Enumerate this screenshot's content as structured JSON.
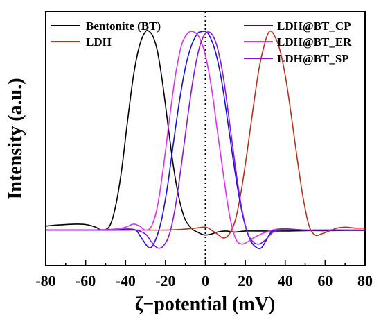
{
  "chart_data": {
    "type": "line",
    "xlabel": "ζ−potential (mV)",
    "ylabel": "Intensity (a.u.)",
    "xlim": [
      -80,
      80
    ],
    "ylim": [
      -0.18,
      1.1
    ],
    "xticks": [
      -80,
      -60,
      -40,
      -20,
      0,
      20,
      40,
      60,
      80
    ],
    "x_minor_step": 10,
    "y_ticks_shown": false,
    "reference_line": {
      "x": 0,
      "style": "dotted"
    },
    "legend": {
      "placement": "top, two columns"
    },
    "series": [
      {
        "name": "Bentonite (BT)",
        "color": "#000000",
        "x": [
          -80,
          -75,
          -70,
          -65,
          -60,
          -55,
          -52,
          -48,
          -45,
          -42,
          -39,
          -36,
          -33,
          -30,
          -28,
          -26,
          -24,
          -22,
          -20,
          -18,
          -16,
          -14,
          -12,
          -10,
          -8,
          -6,
          -4,
          -2,
          0,
          3,
          6,
          10,
          15,
          20,
          30,
          40,
          50,
          60,
          70,
          80
        ],
        "y": [
          0.02,
          0.025,
          0.028,
          0.03,
          0.028,
          0.015,
          0.0,
          0.02,
          0.12,
          0.3,
          0.55,
          0.78,
          0.93,
          1.0,
          1.0,
          0.97,
          0.9,
          0.78,
          0.63,
          0.47,
          0.32,
          0.2,
          0.11,
          0.05,
          0.02,
          0.0,
          -0.01,
          -0.02,
          -0.025,
          -0.02,
          -0.01,
          -0.005,
          -0.01,
          -0.005,
          -0.005,
          -0.005,
          -0.003,
          -0.003,
          -0.002,
          -0.002
        ]
      },
      {
        "name": "LDH",
        "color": "#b5321e",
        "x": [
          -80,
          -60,
          -40,
          -20,
          -10,
          -5,
          0,
          3,
          6,
          9,
          12,
          15,
          18,
          21,
          24,
          27,
          30,
          32,
          34,
          37,
          40,
          43,
          46,
          49,
          52,
          55,
          58,
          62,
          66,
          70,
          75,
          80
        ],
        "y": [
          0.0,
          0.0,
          0.0,
          0.0,
          0.005,
          0.01,
          0.015,
          0.0,
          -0.02,
          -0.04,
          -0.02,
          0.05,
          0.2,
          0.4,
          0.62,
          0.82,
          0.95,
          1.0,
          0.99,
          0.92,
          0.78,
          0.58,
          0.36,
          0.16,
          0.02,
          -0.025,
          -0.02,
          -0.005,
          0.01,
          0.015,
          0.01,
          0.01
        ]
      },
      {
        "name": "LDH@BT_CP",
        "color": "#1a10e0",
        "x": [
          -80,
          -60,
          -45,
          -40,
          -35,
          -32,
          -28,
          -25,
          -22,
          -19,
          -16,
          -13,
          -10,
          -7,
          -4,
          -2,
          0,
          2,
          5,
          8,
          11,
          14,
          17,
          20,
          23,
          26,
          28,
          30,
          33,
          37,
          42,
          50,
          60,
          70,
          80
        ],
        "y": [
          0.0,
          0.0,
          0.0,
          0.005,
          0.0,
          -0.04,
          -0.09,
          -0.05,
          0.05,
          0.22,
          0.44,
          0.65,
          0.82,
          0.93,
          0.99,
          1.0,
          1.0,
          0.98,
          0.9,
          0.76,
          0.56,
          0.35,
          0.16,
          0.02,
          -0.06,
          -0.09,
          -0.09,
          -0.06,
          -0.01,
          0.005,
          0.005,
          0.0,
          0.0,
          0.0,
          0.0
        ]
      },
      {
        "name": "LDH@BT_ER",
        "color": "#e22df7",
        "x": [
          -80,
          -60,
          -45,
          -40,
          -36,
          -33,
          -30,
          -27,
          -24,
          -21,
          -18,
          -15,
          -12,
          -9,
          -6,
          -3,
          0,
          3,
          6,
          9,
          12,
          15,
          18,
          21,
          24,
          28,
          32,
          36,
          40,
          50,
          60,
          70,
          80
        ],
        "y": [
          0.0,
          0.0,
          0.005,
          0.015,
          0.03,
          0.02,
          0.0,
          0.02,
          0.12,
          0.32,
          0.56,
          0.78,
          0.93,
          0.99,
          1.0,
          0.97,
          0.88,
          0.72,
          0.5,
          0.28,
          0.08,
          -0.04,
          -0.07,
          -0.06,
          -0.04,
          -0.02,
          -0.005,
          0.005,
          0.005,
          0.0,
          0.0,
          0.0,
          0.0
        ]
      },
      {
        "name": "LDH@BT_SP",
        "color": "#8a16de",
        "x": [
          -80,
          -60,
          -40,
          -35,
          -30,
          -27,
          -24,
          -21,
          -18,
          -15,
          -12,
          -9,
          -6,
          -3,
          0,
          3,
          6,
          9,
          12,
          15,
          18,
          21,
          24,
          27,
          30,
          34,
          38,
          42,
          50,
          60,
          70,
          80
        ],
        "y": [
          0.0,
          0.0,
          0.0,
          0.0,
          -0.02,
          -0.06,
          -0.09,
          -0.08,
          -0.02,
          0.12,
          0.33,
          0.56,
          0.77,
          0.92,
          0.99,
          0.99,
          0.92,
          0.77,
          0.55,
          0.32,
          0.12,
          -0.01,
          -0.06,
          -0.07,
          -0.05,
          -0.01,
          0.005,
          0.005,
          0.0,
          0.0,
          0.0,
          0.0
        ]
      }
    ]
  }
}
